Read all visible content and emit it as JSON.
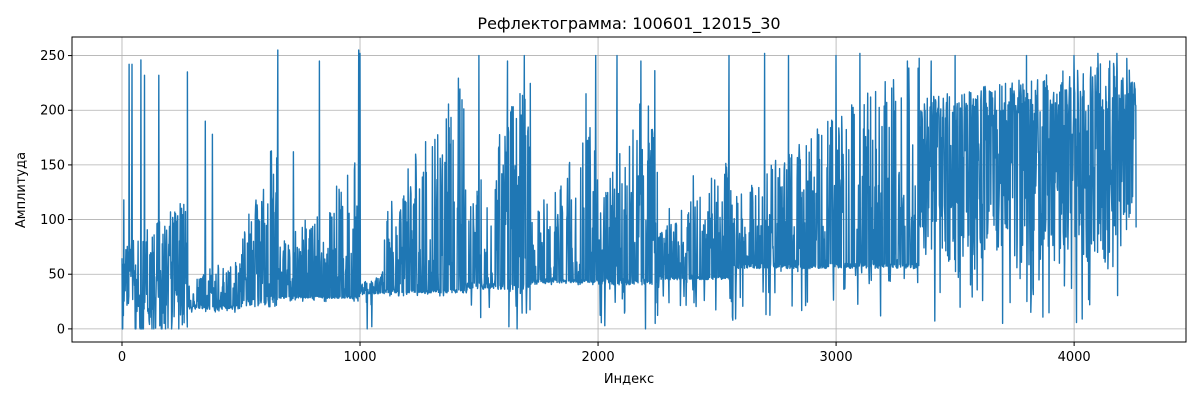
{
  "chart_data": {
    "type": "line",
    "title": "Рефлектограмма: 100601_12015_30",
    "xlabel": "Индекс",
    "ylabel": "Амплитуда",
    "xlim": [
      -210,
      4470
    ],
    "ylim": [
      -12,
      267
    ],
    "x_ticks": [
      0,
      1000,
      2000,
      3000,
      4000
    ],
    "y_ticks": [
      0,
      50,
      100,
      150,
      200,
      250
    ],
    "grid": true,
    "legend": "none",
    "series": [
      {
        "color": "#1f77b4",
        "x_range": [
          0,
          4260
        ],
        "segments": [
          {
            "x": [
              0,
              275
            ],
            "floor": 0,
            "low": 0,
            "base": 48,
            "peak": 120,
            "spikes": [
              [
                8,
                118
              ],
              [
                30,
                242
              ],
              [
                42,
                242
              ],
              [
                80,
                246
              ],
              [
                95,
                232
              ],
              [
                100,
                232
              ],
              [
                135,
                86
              ],
              [
                155,
                232
              ]
            ]
          },
          {
            "x": [
              275,
              500
            ],
            "floor": 15,
            "low": 18,
            "base": 22,
            "peak": 75,
            "spikes": [
              [
                275,
                235
              ],
              [
                300,
                228
              ],
              [
                350,
                190
              ],
              [
                380,
                178
              ],
              [
                405,
                245
              ],
              [
                420,
                255
              ]
            ]
          },
          {
            "x": [
              500,
              660
            ],
            "floor": 20,
            "low": 22,
            "base": 30,
            "peak": 190,
            "spikes": [
              [
                510,
                242
              ],
              [
                540,
                250
              ],
              [
                600,
                248
              ],
              [
                655,
                255
              ],
              [
                665,
                255
              ]
            ]
          },
          {
            "x": [
              660,
              1000
            ],
            "floor": 25,
            "low": 28,
            "base": 30,
            "peak": 160,
            "spikes": [
              [
                720,
                162
              ],
              [
                790,
                205
              ],
              [
                830,
                245
              ],
              [
                880,
                248
              ],
              [
                940,
                248
              ],
              [
                995,
                255
              ]
            ]
          },
          {
            "x": [
              1000,
              1100
            ],
            "floor": 0,
            "low": 32,
            "base": 34,
            "peak": 55,
            "spikes": [
              [
                1000,
                252
              ],
              [
                1010,
                5
              ],
              [
                1030,
                0
              ],
              [
                1050,
                2
              ]
            ]
          },
          {
            "x": [
              1100,
              1450
            ],
            "floor": 30,
            "low": 33,
            "base": 36,
            "peak": 245,
            "spikes": [
              [
                1380,
                240
              ],
              [
                1410,
                250
              ],
              [
                1440,
                248
              ]
            ]
          },
          {
            "x": [
              1450,
              1720
            ],
            "floor": 0,
            "low": 36,
            "base": 42,
            "peak": 245,
            "spikes": [
              [
                1500,
                250
              ],
              [
                1550,
                245
              ],
              [
                1620,
                245
              ],
              [
                1660,
                0
              ],
              [
                1690,
                250
              ],
              [
                1700,
                0
              ]
            ]
          },
          {
            "x": [
              1720,
              2000
            ],
            "floor": 40,
            "low": 42,
            "base": 45,
            "peak": 200,
            "spikes": [
              [
                1830,
                100
              ],
              [
                1950,
                215
              ],
              [
                1990,
                250
              ]
            ]
          },
          {
            "x": [
              2000,
              2250
            ],
            "floor": 0,
            "low": 40,
            "base": 47,
            "peak": 245,
            "spikes": [
              [
                2010,
                245
              ],
              [
                2080,
                250
              ],
              [
                2130,
                248
              ],
              [
                2180,
                245
              ],
              [
                2200,
                0
              ],
              [
                2240,
                5
              ]
            ]
          },
          {
            "x": [
              2250,
              2560
            ],
            "floor": 10,
            "low": 45,
            "base": 48,
            "peak": 160,
            "spikes": [
              [
                2300,
                110
              ],
              [
                2400,
                140
              ],
              [
                2500,
                195
              ],
              [
                2550,
                250
              ]
            ]
          },
          {
            "x": [
              2560,
              3350
            ],
            "floor": 5,
            "low": 55,
            "base": 60,
            "peak": 250,
            "spikes": [
              [
                2560,
                25
              ],
              [
                2600,
                3
              ],
              [
                2700,
                252
              ],
              [
                2800,
                250
              ],
              [
                2900,
                245
              ],
              [
                3000,
                250
              ],
              [
                3100,
                252
              ],
              [
                3200,
                250
              ],
              [
                3300,
                245
              ]
            ]
          },
          {
            "x": [
              3350,
              4262
            ],
            "floor": 5,
            "low": 60,
            "base": 190,
            "peak": 250,
            "spikes": [
              [
                3400,
                245
              ],
              [
                3500,
                250
              ],
              [
                3600,
                250
              ],
              [
                3700,
                5
              ],
              [
                3800,
                250
              ],
              [
                3900,
                245
              ],
              [
                4000,
                250
              ],
              [
                4100,
                252
              ],
              [
                4150,
                245
              ],
              [
                4180,
                252
              ],
              [
                4240,
                225
              ]
            ]
          }
        ]
      }
    ]
  }
}
